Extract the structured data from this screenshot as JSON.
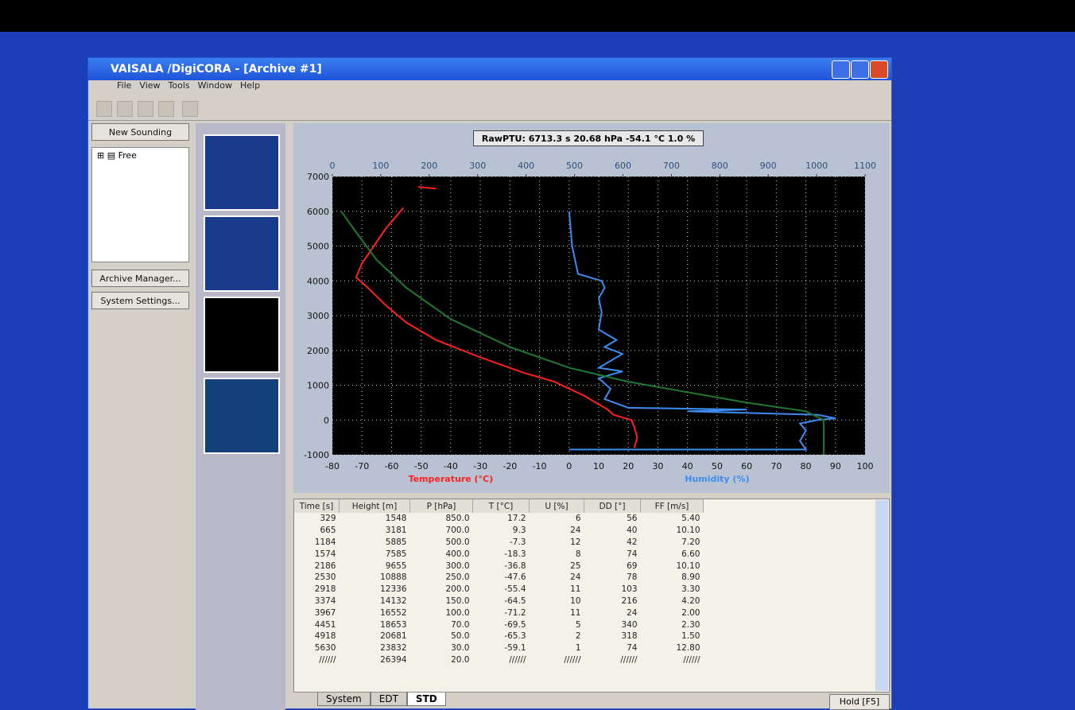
{
  "window": {
    "title": "VAISALA /DigiCORA  - [Archive #1]"
  },
  "menu": [
    "File",
    "View",
    "Tools",
    "Window",
    "Help"
  ],
  "sidebar": {
    "buttons": [
      "New Sounding",
      "Archive Manager...",
      "System Settings..."
    ],
    "tree": "Free"
  },
  "status_box": "RawPTU: 6713.3 s  20.68 hPa  -54.1 °C  1.0 %",
  "chart_data": {
    "type": "line",
    "xlim": [
      -80,
      100
    ],
    "xticks": [
      -80,
      -70,
      -60,
      -50,
      -40,
      -30,
      -20,
      -10,
      0,
      10,
      20,
      30,
      40,
      50,
      60,
      70,
      80,
      90,
      100
    ],
    "x2lim": [
      0,
      1100
    ],
    "x2ticks": [
      0,
      100,
      200,
      300,
      400,
      500,
      600,
      700,
      800,
      900,
      1000,
      1100
    ],
    "ylim": [
      -1000,
      7000
    ],
    "yticks": [
      -1000,
      0,
      1000,
      2000,
      3000,
      4000,
      5000,
      6000,
      7000
    ],
    "grid": true,
    "series": [
      {
        "name": "Temperature (°C)",
        "color": "#ff2020",
        "x": [
          22,
          23,
          22,
          21,
          15,
          13,
          5,
          -5,
          -15,
          -30,
          -45,
          -55,
          -62,
          -68,
          -72,
          -70,
          -66,
          -62,
          -58,
          -56,
          null,
          -51,
          -45
        ],
        "values": [
          -800,
          -500,
          -200,
          0,
          150,
          300,
          700,
          1100,
          1350,
          1800,
          2300,
          2800,
          3300,
          3800,
          4100,
          4500,
          5000,
          5500,
          5900,
          6100,
          null,
          6700,
          6650
        ]
      },
      {
        "name": "Humidity (%)",
        "color": "#3d8cf0",
        "x": [
          0,
          80,
          78,
          80,
          78,
          84,
          90,
          84,
          40,
          60,
          20,
          12,
          14,
          10,
          18,
          10,
          14,
          18,
          12,
          16,
          10,
          11,
          10,
          12,
          11,
          3,
          1,
          0
        ],
        "values": [
          -850,
          -850,
          -600,
          -300,
          -100,
          0,
          50,
          150,
          250,
          300,
          350,
          600,
          900,
          1200,
          1400,
          1500,
          1700,
          1900,
          2100,
          2300,
          2600,
          3100,
          3500,
          3800,
          4000,
          4200,
          5000,
          6000
        ]
      },
      {
        "color": "#1e7a2e",
        "x": [
          86,
          86,
          80,
          60,
          40,
          20,
          0,
          -20,
          -40,
          -55,
          -65,
          -72,
          -77
        ],
        "values": [
          -1000,
          0,
          250,
          500,
          800,
          1100,
          1500,
          2100,
          2900,
          3800,
          4600,
          5400,
          6000
        ]
      }
    ]
  },
  "table": {
    "columns": [
      "Time [s]",
      "Height [m]",
      "P [hPa]",
      "T [°C]",
      "U [%]",
      "DD [°]",
      "FF [m/s]"
    ],
    "rows": [
      [
        "329",
        "1548",
        "850.0",
        "17.2",
        "6",
        "56",
        "5.40"
      ],
      [
        "665",
        "3181",
        "700.0",
        "9.3",
        "24",
        "40",
        "10.10"
      ],
      [
        "1184",
        "5885",
        "500.0",
        "-7.3",
        "12",
        "42",
        "7.20"
      ],
      [
        "1574",
        "7585",
        "400.0",
        "-18.3",
        "8",
        "74",
        "6.60"
      ],
      [
        "2186",
        "9655",
        "300.0",
        "-36.8",
        "25",
        "69",
        "10.10"
      ],
      [
        "2530",
        "10888",
        "250.0",
        "-47.6",
        "24",
        "78",
        "8.90"
      ],
      [
        "2918",
        "12336",
        "200.0",
        "-55.4",
        "11",
        "103",
        "3.30"
      ],
      [
        "3374",
        "14132",
        "150.0",
        "-64.5",
        "10",
        "216",
        "4.20"
      ],
      [
        "3967",
        "16552",
        "100.0",
        "-71.2",
        "11",
        "24",
        "2.00"
      ],
      [
        "4451",
        "18653",
        "70.0",
        "-69.5",
        "5",
        "340",
        "2.30"
      ],
      [
        "4918",
        "20681",
        "50.0",
        "-65.3",
        "2",
        "318",
        "1.50"
      ],
      [
        "5630",
        "23832",
        "30.0",
        "-59.1",
        "1",
        "74",
        "12.80"
      ],
      [
        "//////",
        "26394",
        "20.0",
        "//////",
        "//////",
        "//////",
        "//////"
      ]
    ]
  },
  "tabs": [
    "System",
    "EDT",
    "STD"
  ],
  "hold_button": "Hold [F5]"
}
